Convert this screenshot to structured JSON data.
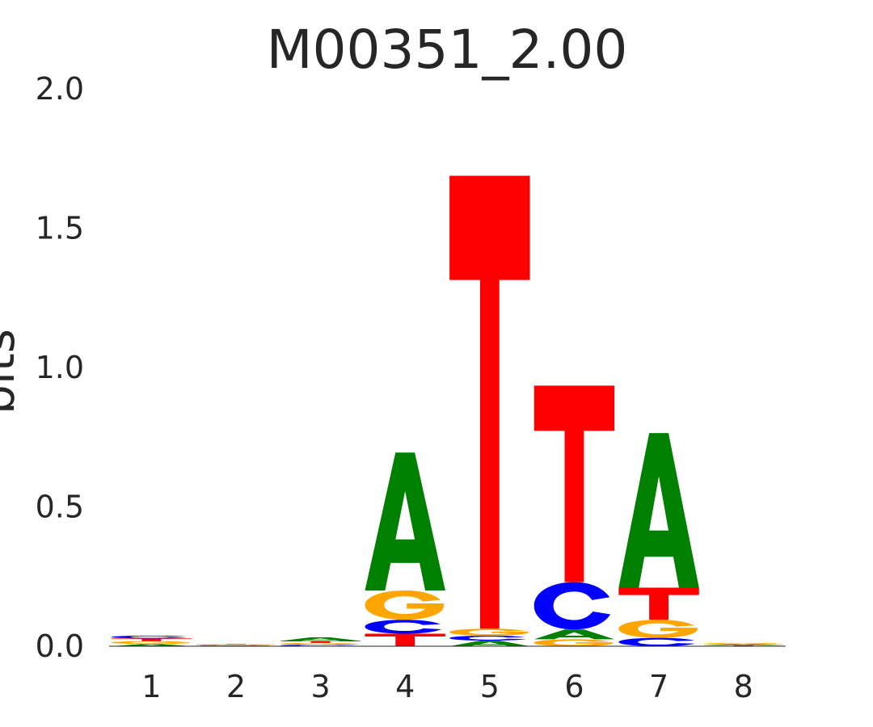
{
  "chart_data": {
    "type": "bar",
    "subtype": "sequence-logo",
    "title": "M00351_2.00",
    "ylabel": "bits",
    "xlabel": "",
    "ylim": [
      0,
      2
    ],
    "yticks": [
      "0.0",
      "0.5",
      "1.0",
      "1.5",
      "2.0"
    ],
    "categories": [
      "1",
      "2",
      "3",
      "4",
      "5",
      "6",
      "7",
      "8"
    ],
    "grid": false,
    "colors": {
      "A": "#008000",
      "C": "#0000ff",
      "G": "#ffa500",
      "T": "#ff0000"
    },
    "positions": [
      {
        "position": "1",
        "stack": [
          {
            "letter": "A",
            "bits": 0.008
          },
          {
            "letter": "G",
            "bits": 0.01
          },
          {
            "letter": "T",
            "bits": 0.01
          },
          {
            "letter": "C",
            "bits": 0.01
          }
        ]
      },
      {
        "position": "2",
        "stack": [
          {
            "letter": "A",
            "bits": 0.002
          },
          {
            "letter": "C",
            "bits": 0.002
          },
          {
            "letter": "G",
            "bits": 0.002
          },
          {
            "letter": "T",
            "bits": 0.002
          }
        ]
      },
      {
        "position": "3",
        "stack": [
          {
            "letter": "C",
            "bits": 0.005
          },
          {
            "letter": "G",
            "bits": 0.007
          },
          {
            "letter": "T",
            "bits": 0.007
          },
          {
            "letter": "A",
            "bits": 0.013
          }
        ]
      },
      {
        "position": "4",
        "stack": [
          {
            "letter": "T",
            "bits": 0.045
          },
          {
            "letter": "C",
            "bits": 0.05
          },
          {
            "letter": "G",
            "bits": 0.105
          },
          {
            "letter": "A",
            "bits": 0.495
          }
        ]
      },
      {
        "position": "5",
        "stack": [
          {
            "letter": "A",
            "bits": 0.02
          },
          {
            "letter": "C",
            "bits": 0.018
          },
          {
            "letter": "G",
            "bits": 0.025
          },
          {
            "letter": "T",
            "bits": 1.625
          }
        ]
      },
      {
        "position": "6",
        "stack": [
          {
            "letter": "G",
            "bits": 0.025
          },
          {
            "letter": "A",
            "bits": 0.035
          },
          {
            "letter": "C",
            "bits": 0.17
          },
          {
            "letter": "T",
            "bits": 0.705
          }
        ]
      },
      {
        "position": "7",
        "stack": [
          {
            "letter": "C",
            "bits": 0.03
          },
          {
            "letter": "G",
            "bits": 0.065
          },
          {
            "letter": "T",
            "bits": 0.115
          },
          {
            "letter": "A",
            "bits": 0.555
          }
        ]
      },
      {
        "position": "8",
        "stack": [
          {
            "letter": "T",
            "bits": 0.004
          },
          {
            "letter": "A",
            "bits": 0.004
          },
          {
            "letter": "G",
            "bits": 0.004
          }
        ]
      }
    ]
  }
}
